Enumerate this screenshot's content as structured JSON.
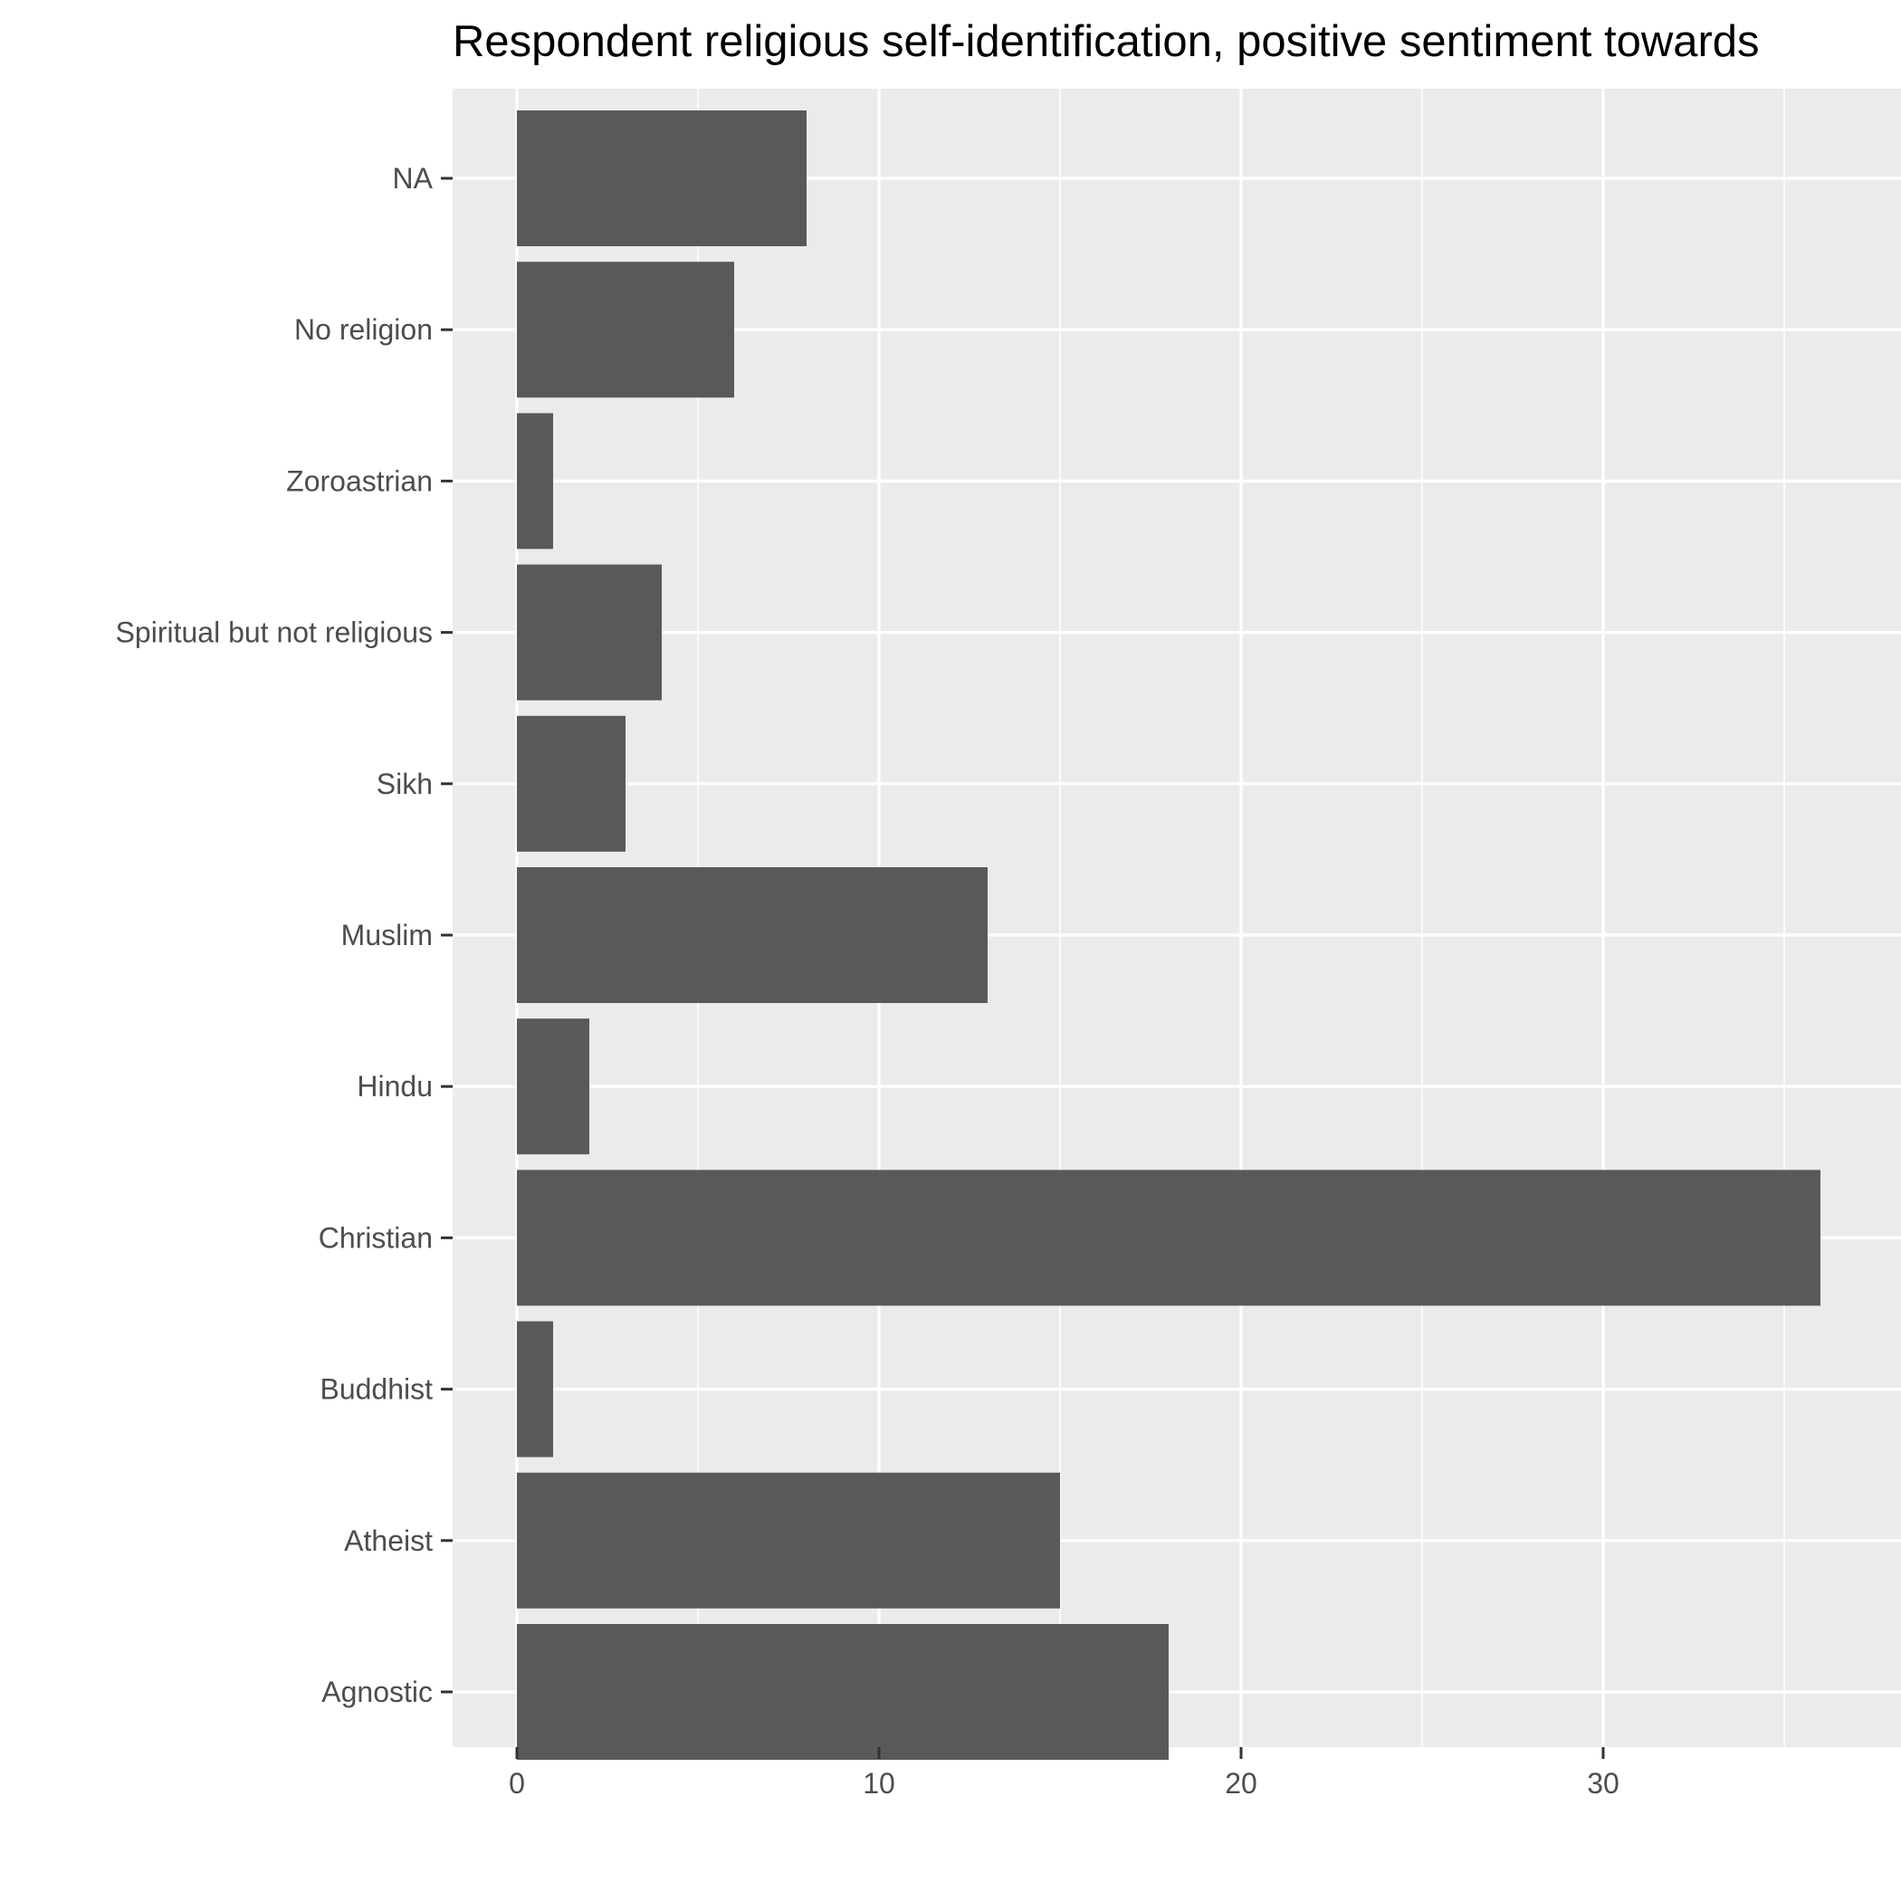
{
  "chart_data": {
    "type": "bar",
    "orientation": "horizontal",
    "title": "Respondent religious self-identification, positive sentiment towards",
    "xlabel": "",
    "ylabel": "",
    "categories": [
      "Agnostic",
      "Atheist",
      "Buddhist",
      "Christian",
      "Hindu",
      "Muslim",
      "Sikh",
      "Spiritual but not religious",
      "Zoroastrian",
      "No religion",
      "NA"
    ],
    "values": [
      18,
      15,
      1,
      36,
      2,
      13,
      3,
      4,
      1,
      6,
      8
    ],
    "xlim": [
      -1.8,
      38
    ],
    "x_ticks": [
      0,
      10,
      20,
      30
    ],
    "grid": true,
    "legend": "none",
    "colors": {
      "bar": "#595959",
      "panel": "#ebebeb",
      "grid": "#ffffff",
      "tick_text": "#4d4d4d",
      "tick_mark": "#333333"
    }
  }
}
